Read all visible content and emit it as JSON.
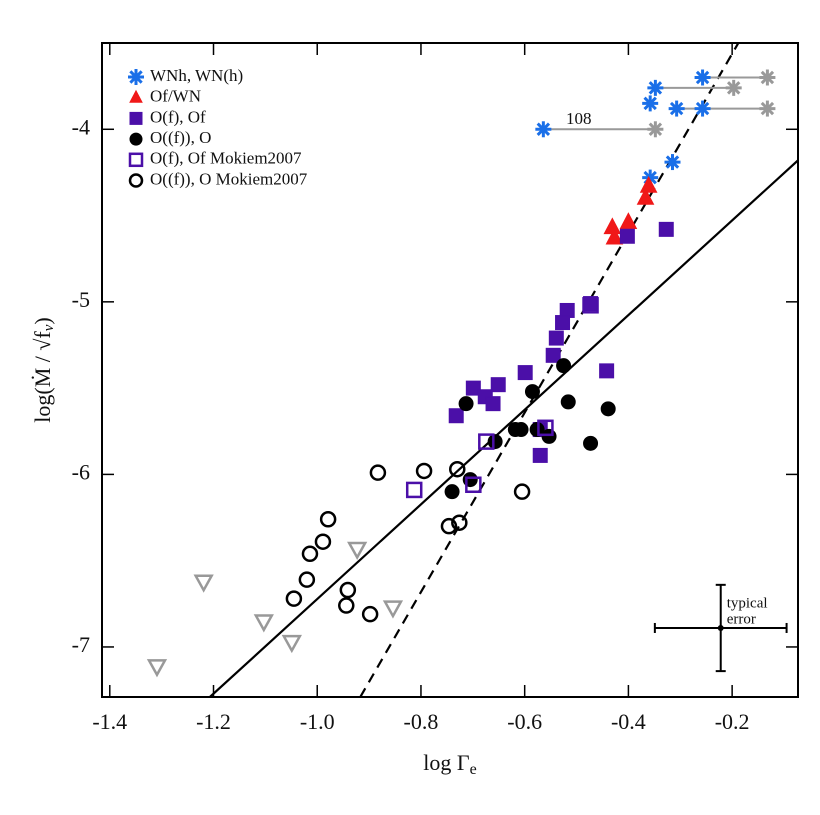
{
  "chart_data": {
    "type": "scatter",
    "x_label": "log Γ",
    "x_label_sub": "e",
    "y_label": "log(Ṁ / √f",
    "y_label_sub": "v",
    "y_label_end": ")",
    "xlim": [
      -1.415,
      -0.073
    ],
    "ylim": [
      -7.29,
      -3.5
    ],
    "xticks": [
      -1.4,
      -1.2,
      {
        "value": -1,
        "label": "-1.0"
      },
      -0.8,
      -0.6,
      -0.4,
      -0.2
    ],
    "yticks": [
      -7,
      -6,
      -5,
      -4
    ],
    "annotation": "108",
    "series": [
      {
        "name": "WNh, WN(h)",
        "color": "#1a6fe8",
        "marker": "asterisk",
        "filled": true,
        "x": [
          -0.257,
          -0.348,
          -0.358,
          -0.307,
          -0.257,
          -0.564,
          -0.315,
          -0.358
        ],
        "y": [
          -3.7,
          -3.76,
          -3.85,
          -3.88,
          -3.88,
          -4.0,
          -4.19,
          -4.28
        ]
      },
      {
        "name": "Of/WN",
        "color": "#f01818",
        "marker": "triangle",
        "filled": true,
        "x": [
          -0.361,
          -0.367,
          -0.4,
          -0.431,
          -0.427
        ],
        "y": [
          -4.33,
          -4.4,
          -4.54,
          -4.57,
          -4.63
        ]
      },
      {
        "name": "O(f), Of",
        "color": "#4b0fa8",
        "marker": "square",
        "filled": true,
        "x": [
          -0.402,
          -0.327,
          -0.473,
          -0.518,
          -0.527,
          -0.539,
          -0.545,
          -0.599,
          -0.442,
          -0.651,
          -0.699,
          -0.676,
          -0.661,
          -0.732,
          -0.57,
          -0.57
        ],
        "y": [
          -4.62,
          -4.58,
          -5.01,
          -5.05,
          -5.12,
          -5.21,
          -5.31,
          -5.41,
          -5.4,
          -5.48,
          -5.5,
          -5.55,
          -5.59,
          -5.66,
          -5.89,
          -5.74
        ]
      },
      {
        "name": "O((f)), O",
        "color": "#000000",
        "marker": "circle",
        "filled": true,
        "x": [
          -0.713,
          -0.585,
          -0.525,
          -0.516,
          -0.439,
          -0.618,
          -0.607,
          -0.576,
          -0.553,
          -0.657,
          -0.473,
          -0.74,
          -0.705
        ],
        "y": [
          -5.59,
          -5.52,
          -5.37,
          -5.58,
          -5.62,
          -5.74,
          -5.74,
          -5.74,
          -5.78,
          -5.81,
          -5.82,
          -6.1,
          -6.03
        ]
      },
      {
        "name": "O(f), Of Mokiem2007",
        "color": "#4b0fa8",
        "marker": "square",
        "filled": false,
        "x": [
          -0.473,
          -0.56,
          -0.674,
          -0.699,
          -0.813
        ],
        "y": [
          -5.02,
          -5.73,
          -5.81,
          -6.06,
          -6.09
        ]
      },
      {
        "name": "O((f)), O Mokiem2007",
        "color": "#000000",
        "marker": "circle",
        "filled": false,
        "x": [
          -0.73,
          -0.794,
          -0.883,
          -0.605,
          -0.726,
          -0.746,
          -0.979,
          -0.989,
          -1.014,
          -0.941,
          -1.02,
          -0.944,
          -1.045,
          -0.898
        ],
        "y": [
          -5.97,
          -5.98,
          -5.99,
          -6.1,
          -6.28,
          -6.3,
          -6.26,
          -6.39,
          -6.46,
          -6.67,
          -6.61,
          -6.76,
          -6.72,
          -6.81
        ]
      },
      {
        "color": "#999999",
        "marker": "asterisk",
        "filled": true,
        "x": [
          -0.132,
          -0.197,
          -0.132,
          -0.348
        ],
        "y": [
          -3.7,
          -3.76,
          -3.88,
          -4.0
        ]
      },
      {
        "color": "#999999",
        "marker": "triangle-down",
        "filled": false,
        "x": [
          -1.219,
          -1.309,
          -1.103,
          -1.049,
          -0.923,
          -0.854
        ],
        "y": [
          -6.62,
          -7.11,
          -6.85,
          -6.97,
          -6.43,
          -6.77
        ]
      }
    ],
    "lines": [
      {
        "style": "solid",
        "x": [
          -1.207,
          -0.073
        ],
        "y": [
          -7.29,
          -4.18
        ]
      },
      {
        "style": "dashed",
        "x": [
          -0.917,
          -0.188
        ],
        "y": [
          -7.29,
          -3.5
        ]
      }
    ],
    "error_bar": {
      "x": -0.222,
      "y": -6.89,
      "xerr": 0.127,
      "yerr": 0.25,
      "label": [
        "typical",
        "error"
      ]
    }
  }
}
